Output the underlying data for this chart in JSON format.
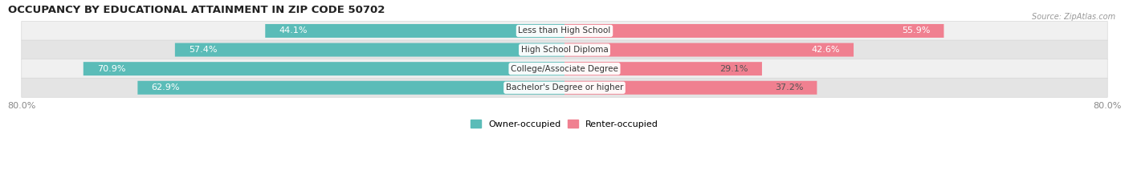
{
  "title": "OCCUPANCY BY EDUCATIONAL ATTAINMENT IN ZIP CODE 50702",
  "source": "Source: ZipAtlas.com",
  "categories": [
    "Less than High School",
    "High School Diploma",
    "College/Associate Degree",
    "Bachelor's Degree or higher"
  ],
  "owner_pct": [
    44.1,
    57.4,
    70.9,
    62.9
  ],
  "renter_pct": [
    55.9,
    42.6,
    29.1,
    37.2
  ],
  "owner_color": "#5bbcb8",
  "renter_color": "#f08090",
  "row_bg_colors": [
    "#f0f0f0",
    "#e4e4e4",
    "#f0f0f0",
    "#e4e4e4"
  ],
  "row_border_color": "#d8d8d8",
  "xlim_left": -80.0,
  "xlim_right": 80.0,
  "axis_label_left": "80.0%",
  "axis_label_right": "80.0%",
  "bar_height": 0.72,
  "owner_label": "Owner-occupied",
  "renter_label": "Renter-occupied",
  "title_fontsize": 9.5,
  "label_fontsize": 8,
  "cat_fontsize": 7.5,
  "tick_fontsize": 8,
  "source_fontsize": 7
}
